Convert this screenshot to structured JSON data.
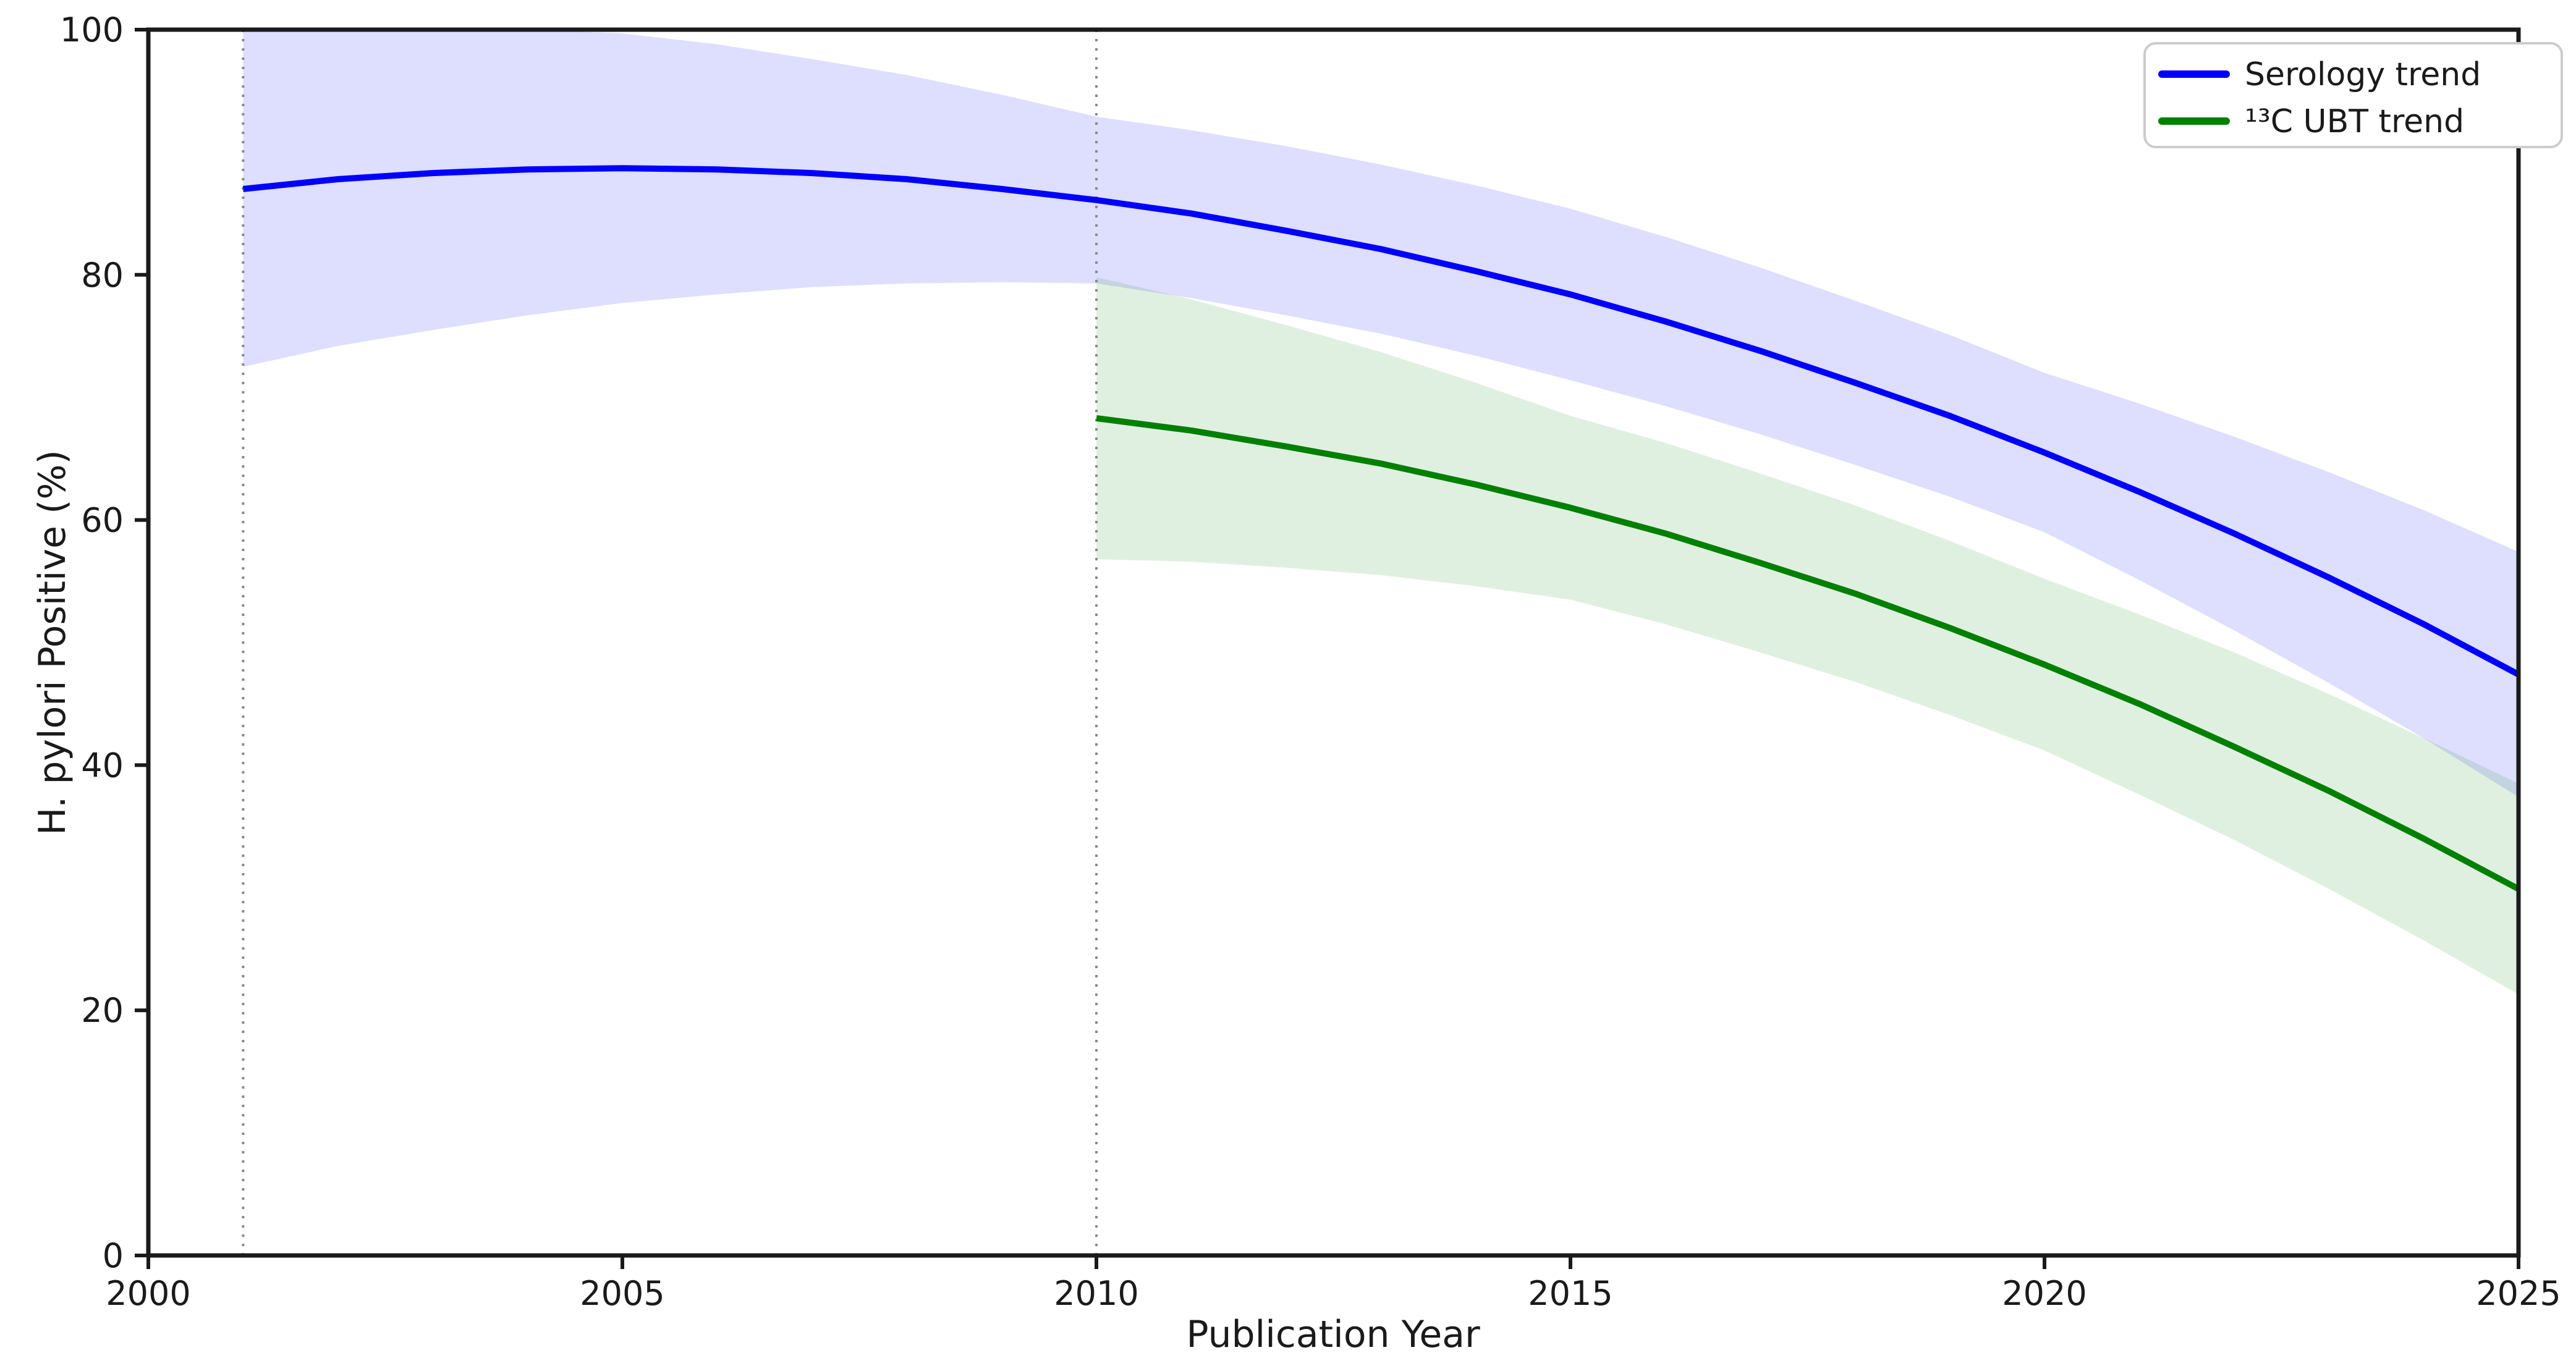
{
  "chart_data": {
    "type": "line",
    "title": "",
    "xlabel": "Publication Year",
    "ylabel": "H. pylori Positive (%)",
    "xlim": [
      2000,
      2025
    ],
    "ylim": [
      0,
      100
    ],
    "xticks": [
      "2000",
      "2005",
      "2010",
      "2015",
      "2020",
      "2025"
    ],
    "xtick_values": [
      2000,
      2005,
      2010,
      2015,
      2020,
      2025
    ],
    "yticks": [
      "0",
      "20",
      "40",
      "60",
      "80",
      "100"
    ],
    "ytick_values": [
      0,
      20,
      40,
      60,
      80,
      100
    ],
    "grid": false,
    "legend_position": "upper right",
    "vlines": [
      {
        "x": 2001,
        "style": "dotted",
        "color": "#8a8a8a"
      },
      {
        "x": 2010,
        "style": "dotted",
        "color": "#8a8a8a"
      }
    ],
    "series": [
      {
        "name": "Serology trend",
        "color": "#0000ff",
        "band_color": "rgba(0,0,255,0.13)",
        "x": [
          2001,
          2002,
          2003,
          2004,
          2005,
          2006,
          2007,
          2008,
          2009,
          2010,
          2011,
          2012,
          2013,
          2014,
          2015,
          2016,
          2017,
          2018,
          2019,
          2020,
          2021,
          2022,
          2023,
          2024,
          2025
        ],
        "y": [
          87.0,
          87.8,
          88.3,
          88.6,
          88.7,
          88.6,
          88.3,
          87.8,
          87.0,
          86.1,
          85.0,
          83.6,
          82.1,
          80.3,
          78.4,
          76.2,
          73.8,
          71.2,
          68.5,
          65.5,
          62.3,
          58.9,
          55.3,
          51.5,
          47.4
        ],
        "band_upper": [
          100,
          100,
          100,
          100,
          99.7,
          98.8,
          97.6,
          96.3,
          94.7,
          92.9,
          91.8,
          90.5,
          89.0,
          87.3,
          85.4,
          83.1,
          80.6,
          77.9,
          75.1,
          72.0,
          69.5,
          66.8,
          63.9,
          60.8,
          57.4
        ],
        "band_lower": [
          72.5,
          74.2,
          75.5,
          76.7,
          77.7,
          78.4,
          79.0,
          79.3,
          79.4,
          79.3,
          78.1,
          76.7,
          75.2,
          73.4,
          71.4,
          69.3,
          67.0,
          64.5,
          61.9,
          59.0,
          55.1,
          51.0,
          46.7,
          42.2,
          37.4
        ]
      },
      {
        "name": "¹³C UBT trend",
        "color": "#008000",
        "band_color": "rgba(0,128,0,0.12)",
        "x": [
          2010,
          2011,
          2012,
          2013,
          2014,
          2015,
          2016,
          2017,
          2018,
          2019,
          2020,
          2021,
          2022,
          2023,
          2024,
          2025
        ],
        "y": [
          68.3,
          67.3,
          66.0,
          64.6,
          62.9,
          61.0,
          58.9,
          56.5,
          54.0,
          51.2,
          48.2,
          45.0,
          41.5,
          37.9,
          34.0,
          29.9
        ],
        "band_upper": [
          79.8,
          78.0,
          75.9,
          73.7,
          71.2,
          68.5,
          66.3,
          63.8,
          61.2,
          58.3,
          55.2,
          52.3,
          49.2,
          45.8,
          42.2,
          38.5
        ],
        "band_lower": [
          56.8,
          56.6,
          56.1,
          55.5,
          54.6,
          53.5,
          51.5,
          49.2,
          46.8,
          44.1,
          41.2,
          37.6,
          33.9,
          29.9,
          25.7,
          21.3
        ]
      }
    ],
    "colors": {
      "spine": "#1a1a1a",
      "tick": "#1a1a1a",
      "legend_border": "#cccccc",
      "legend_bg": "#ffffff"
    }
  }
}
